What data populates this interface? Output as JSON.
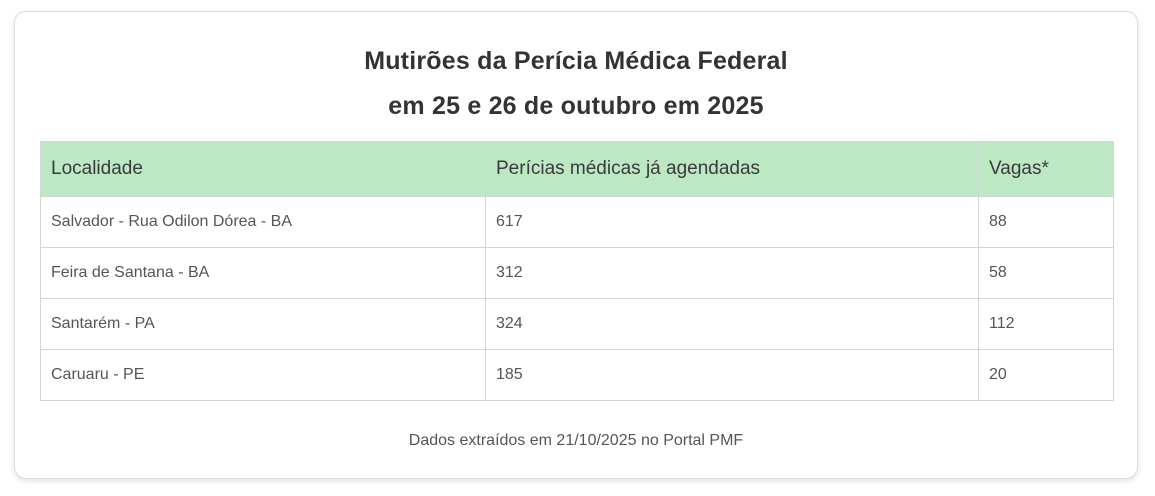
{
  "title": {
    "line1": "Mutirões da Perícia Médica Federal",
    "line2": "em 25 e 26 de outubro em 2025"
  },
  "table": {
    "headers": [
      "Localidade",
      "Perícias médicas já agendadas",
      "Vagas*"
    ],
    "rows": [
      [
        "Salvador - Rua Odilon Dórea - BA",
        "617",
        "88"
      ],
      [
        "Feira de Santana - BA",
        "312",
        "58"
      ],
      [
        "Santarém - PA",
        "324",
        "112"
      ],
      [
        "Caruaru - PE",
        "185",
        "20"
      ]
    ]
  },
  "footnote": "Dados extraídos em 21/10/2025 no Portal PMF",
  "colors": {
    "header_bg": "#bde8c4",
    "border": "#d4d4d4",
    "text": "#333333"
  }
}
